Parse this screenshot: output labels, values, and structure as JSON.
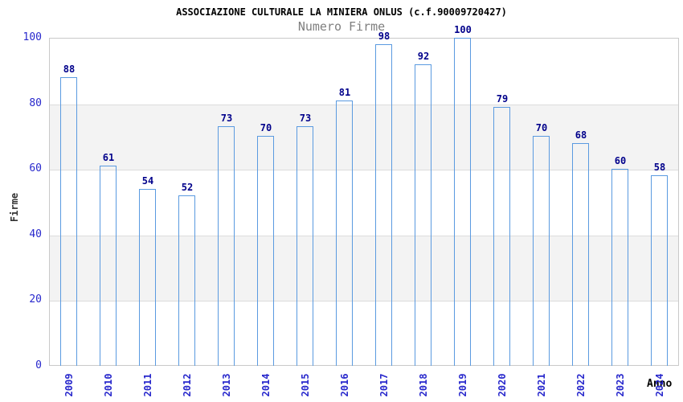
{
  "chart_data": {
    "type": "bar",
    "title": "ASSOCIAZIONE CULTURALE LA MINIERA ONLUS (c.f.90009720427)",
    "subtitle": "Numero Firme",
    "xlabel": "Anno",
    "ylabel": "Firme",
    "categories": [
      "2009",
      "2010",
      "2011",
      "2012",
      "2013",
      "2014",
      "2015",
      "2016",
      "2017",
      "2018",
      "2019",
      "2020",
      "2021",
      "2022",
      "2023",
      "2024"
    ],
    "values": [
      88,
      61,
      54,
      52,
      73,
      70,
      73,
      81,
      98,
      92,
      100,
      79,
      70,
      68,
      60,
      58
    ],
    "ylim": [
      0,
      100
    ],
    "ytick_step": 20,
    "ytick_labels": [
      "0",
      "20",
      "40",
      "60",
      "80",
      "100"
    ],
    "grid": "alternating horizontal bands",
    "legend_position": "none",
    "bar_labels_shown": true
  },
  "colors": {
    "title": "#000000",
    "subtitle": "#7f7f7f",
    "tick_label": "#2727cc",
    "value_label": "#00008b",
    "bar_border": "#5a9ae0",
    "bar_dark": "#20207a",
    "bar_light": "#abb1da",
    "band_fill": "#f3f3f3",
    "gridline": "#dcdcdc",
    "plot_border": "#c9c9c9",
    "axis_title": "#333333"
  }
}
